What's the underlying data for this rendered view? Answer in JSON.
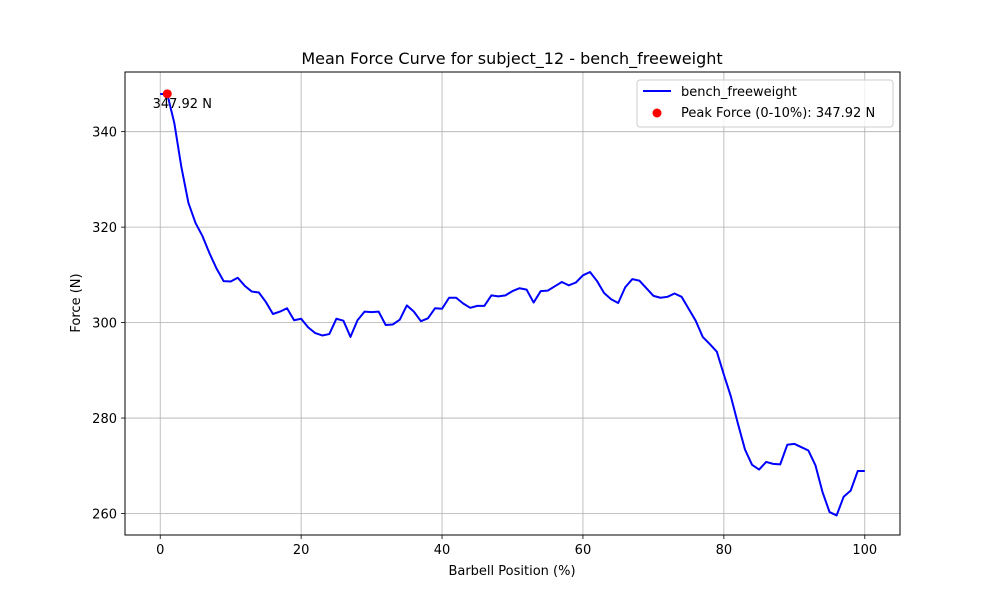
{
  "chart_data": {
    "type": "line",
    "title": "Mean Force Curve for subject_12 - bench_freeweight",
    "xlabel": "Barbell Position (%)",
    "ylabel": "Force (N)",
    "xlim": [
      -5,
      105
    ],
    "ylim": [
      255.5,
      352.5
    ],
    "xticks": [
      0,
      20,
      40,
      60,
      80,
      100
    ],
    "yticks": [
      260,
      280,
      300,
      320,
      340
    ],
    "grid": true,
    "legend_position": "top-right",
    "series": [
      {
        "name": "bench_freeweight",
        "color": "#0000ff",
        "x": [
          0,
          1,
          2,
          3,
          4,
          5,
          6,
          7,
          8,
          9,
          10,
          11,
          12,
          13,
          14,
          15,
          16,
          17,
          18,
          19,
          20,
          21,
          22,
          23,
          24,
          25,
          26,
          27,
          28,
          29,
          30,
          31,
          32,
          33,
          34,
          35,
          36,
          37,
          38,
          39,
          40,
          41,
          42,
          43,
          44,
          45,
          46,
          47,
          48,
          49,
          50,
          51,
          52,
          53,
          54,
          55,
          56,
          57,
          58,
          59,
          60,
          61,
          62,
          63,
          64,
          65,
          66,
          67,
          68,
          69,
          70,
          71,
          72,
          73,
          74,
          75,
          76,
          77,
          78,
          79,
          80,
          81,
          82,
          83,
          84,
          85,
          86,
          87,
          88,
          89,
          90,
          91,
          92,
          93,
          94,
          95,
          96,
          97,
          98,
          99,
          100
        ],
        "y": [
          347.9,
          347.9,
          341.8,
          332.6,
          325.1,
          320.9,
          318.1,
          314.5,
          311.3,
          308.7,
          308.6,
          309.4,
          307.7,
          306.5,
          306.3,
          304.3,
          301.8,
          302.3,
          303.0,
          300.5,
          300.8,
          299.0,
          297.8,
          297.3,
          297.6,
          300.8,
          300.4,
          297.0,
          300.5,
          302.3,
          302.2,
          302.3,
          299.5,
          299.6,
          300.6,
          303.6,
          302.3,
          300.3,
          300.9,
          303.0,
          302.9,
          305.2,
          305.2,
          304.0,
          303.1,
          303.5,
          303.5,
          305.7,
          305.5,
          305.7,
          306.6,
          307.2,
          306.9,
          304.2,
          306.6,
          306.7,
          307.6,
          308.5,
          307.8,
          308.4,
          309.9,
          310.6,
          308.7,
          306.2,
          304.9,
          304.1,
          307.4,
          309.1,
          308.8,
          307.2,
          305.6,
          305.2,
          305.4,
          306.1,
          305.4,
          302.9,
          300.4,
          297.0,
          295.5,
          293.9,
          289.1,
          284.5,
          278.8,
          273.4,
          270.2,
          269.2,
          270.8,
          270.4,
          270.3,
          274.4,
          274.6,
          273.9,
          273.2,
          270.1,
          264.5,
          260.3,
          259.6,
          263.5,
          264.8,
          268.9,
          268.9
        ]
      }
    ],
    "peak": {
      "label": "Peak Force (0-10%): 347.92 N",
      "x": 1,
      "y": 347.92,
      "annotation": "347.92 N",
      "color": "#ff0000"
    }
  }
}
